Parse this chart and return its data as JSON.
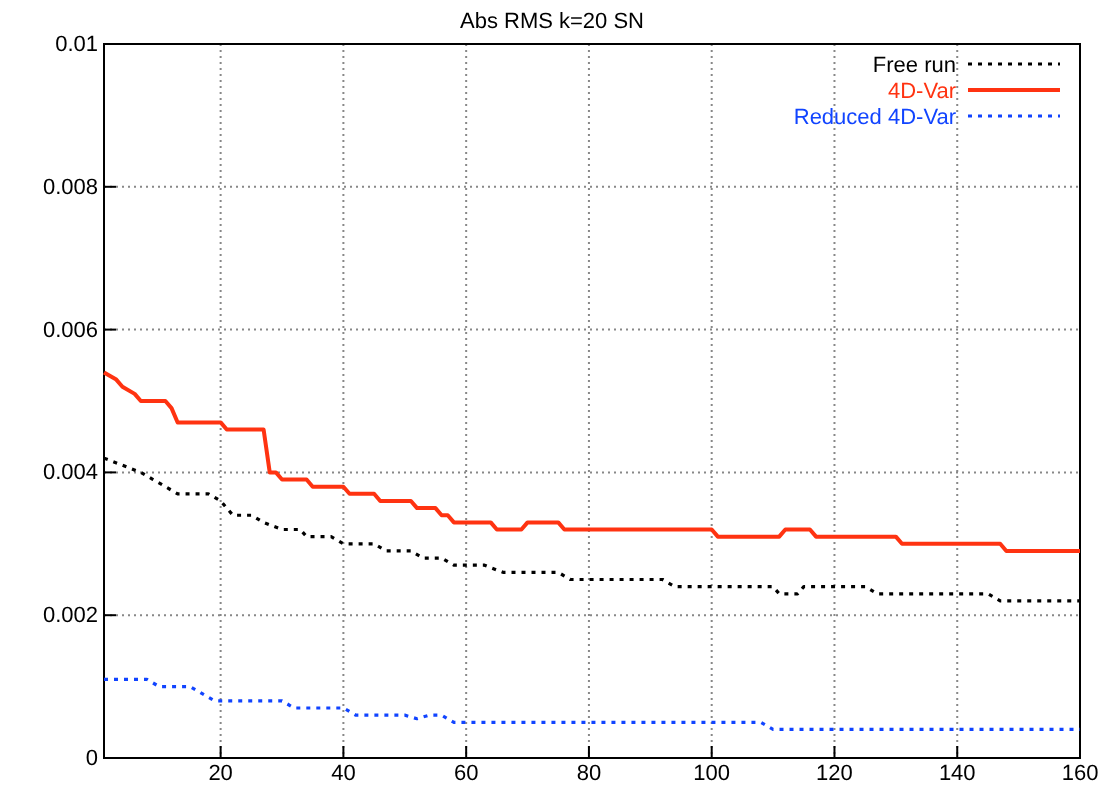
{
  "chart_data": {
    "type": "line",
    "title": "Abs RMS k=20 SN",
    "xlim": [
      1,
      160
    ],
    "xticks": [
      20,
      40,
      60,
      80,
      100,
      120,
      140,
      160
    ],
    "ylim": [
      0,
      0.01
    ],
    "yticks": [
      0,
      0.002,
      0.004,
      0.006,
      0.008,
      0.01
    ],
    "grid": true,
    "legend": "top right",
    "marker": "none",
    "series": [
      {
        "name": "Free run",
        "color": "#000000",
        "line_style": "dotted",
        "x": [
          1,
          4,
          7,
          9,
          11,
          13,
          18,
          20,
          22,
          25,
          27,
          30,
          33,
          34,
          38,
          40,
          45,
          47,
          51,
          53,
          56,
          58,
          63,
          66,
          75,
          77,
          92,
          94,
          110,
          111,
          114,
          115,
          125,
          127,
          145,
          147,
          160
        ],
        "values": [
          0.0042,
          0.0041,
          0.004,
          0.0039,
          0.0038,
          0.0037,
          0.0037,
          0.0036,
          0.0034,
          0.0034,
          0.0033,
          0.0032,
          0.0032,
          0.0031,
          0.0031,
          0.003,
          0.003,
          0.0029,
          0.0029,
          0.0028,
          0.0028,
          0.0027,
          0.0027,
          0.0026,
          0.0026,
          0.0025,
          0.0025,
          0.0024,
          0.0024,
          0.0023,
          0.0023,
          0.0024,
          0.0024,
          0.0023,
          0.0023,
          0.0022,
          0.0022
        ]
      },
      {
        "name": "4D-Var",
        "color": "#ff3311",
        "line_style": "solid",
        "x": [
          1,
          3,
          4,
          6,
          7,
          11,
          12,
          13,
          20,
          21,
          27,
          28,
          29,
          30,
          34,
          35,
          40,
          41,
          45,
          46,
          51,
          52,
          55,
          56,
          57,
          58,
          64,
          65,
          69,
          70,
          75,
          76,
          100,
          101,
          111,
          112,
          116,
          117,
          130,
          131,
          147,
          148,
          160
        ],
        "values": [
          0.0054,
          0.0053,
          0.0052,
          0.0051,
          0.005,
          0.005,
          0.0049,
          0.0047,
          0.0047,
          0.0046,
          0.0046,
          0.004,
          0.004,
          0.0039,
          0.0039,
          0.0038,
          0.0038,
          0.0037,
          0.0037,
          0.0036,
          0.0036,
          0.0035,
          0.0035,
          0.0034,
          0.0034,
          0.0033,
          0.0033,
          0.0032,
          0.0032,
          0.0033,
          0.0033,
          0.0032,
          0.0032,
          0.0031,
          0.0031,
          0.0032,
          0.0032,
          0.0031,
          0.0031,
          0.003,
          0.003,
          0.0029,
          0.0029
        ]
      },
      {
        "name": "Reduced 4D-Var",
        "color": "#1144ff",
        "line_style": "dotted",
        "x": [
          1,
          8,
          10,
          15,
          17,
          19,
          30,
          32,
          40,
          42,
          50,
          52,
          54,
          56,
          58,
          108,
          110,
          160
        ],
        "values": [
          0.0011,
          0.0011,
          0.001,
          0.001,
          0.0009,
          0.0008,
          0.0008,
          0.0007,
          0.0007,
          0.0006,
          0.0006,
          0.00055,
          0.0006,
          0.0006,
          0.0005,
          0.0005,
          0.0004,
          0.0004
        ]
      }
    ]
  }
}
